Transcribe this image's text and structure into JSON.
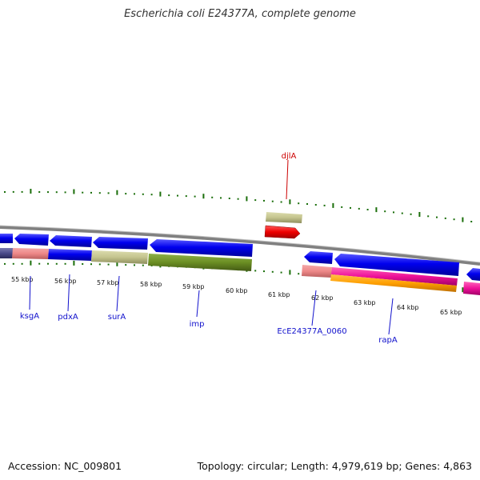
{
  "title": "Escherichia coli E24377A, complete genome",
  "footer": {
    "accession": "Accession: NC_009801",
    "summary": "Topology: circular; Length: 4,979,619 bp; Genes: 4,863"
  },
  "colors": {
    "backbone": "#808080",
    "tick": "#1a6e0a",
    "cds": "#0000ee",
    "label_blue": "#1010cc",
    "label_red": "#cc0000"
  },
  "ticks": [
    "55 kbp",
    "56 kbp",
    "57 kbp",
    "58 kbp",
    "59 kbp",
    "60 kbp",
    "61 kbp",
    "62 kbp",
    "63 kbp",
    "64 kbp",
    "65 kbp"
  ],
  "gene_labels": [
    {
      "name": "djlA",
      "color": "red"
    },
    {
      "name": "ksgA",
      "color": "blue"
    },
    {
      "name": "pdxA",
      "color": "blue"
    },
    {
      "name": "surA",
      "color": "blue"
    },
    {
      "name": "imp",
      "color": "blue"
    },
    {
      "name": "EcE24377A_0060",
      "color": "blue"
    },
    {
      "name": "rapA",
      "color": "blue"
    }
  ]
}
